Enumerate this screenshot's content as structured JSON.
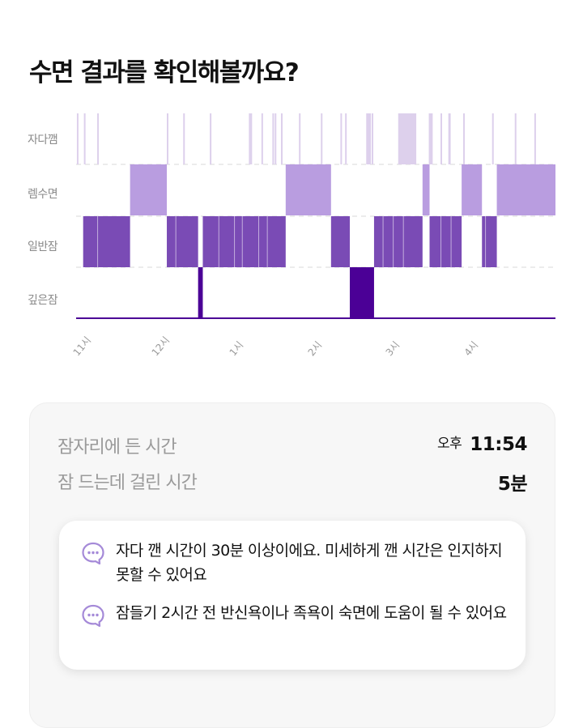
{
  "header": {
    "title": "수면 결과를 확인해볼까요?"
  },
  "chart_data": {
    "type": "heatmap",
    "title": "",
    "stages": [
      "자다깸",
      "렘수면",
      "일반잠",
      "깊은잠"
    ],
    "x_ticks": [
      "11시",
      "12시",
      "1시",
      "2시",
      "3시",
      "4시"
    ],
    "x_tick_hours": [
      0,
      1,
      2,
      3,
      4,
      5
    ],
    "xlim_hours": [
      0,
      6.13
    ],
    "colors": {
      "자다깸": "#ddd0ec",
      "렘수면": "#b99de0",
      "일반잠": "#7a4bb5",
      "깊은잠": "#4b0096"
    },
    "segments": [
      {
        "stage": "일반잠",
        "start": 0.09,
        "end": 0.69
      },
      {
        "stage": "렘수면",
        "start": 0.69,
        "end": 1.16
      },
      {
        "stage": "일반잠",
        "start": 1.16,
        "end": 1.56
      },
      {
        "stage": "깊은잠",
        "start": 1.56,
        "end": 1.62
      },
      {
        "stage": "일반잠",
        "start": 1.62,
        "end": 2.68
      },
      {
        "stage": "렘수면",
        "start": 2.68,
        "end": 3.26
      },
      {
        "stage": "일반잠",
        "start": 3.26,
        "end": 3.5
      },
      {
        "stage": "깊은잠",
        "start": 3.5,
        "end": 3.81
      },
      {
        "stage": "일반잠",
        "start": 3.81,
        "end": 4.43
      },
      {
        "stage": "렘수면",
        "start": 4.43,
        "end": 4.52
      },
      {
        "stage": "일반잠",
        "start": 4.52,
        "end": 4.93
      },
      {
        "stage": "렘수면",
        "start": 4.93,
        "end": 5.19
      },
      {
        "stage": "일반잠",
        "start": 5.19,
        "end": 5.38
      },
      {
        "stage": "렘수면",
        "start": 5.38,
        "end": 6.13
      }
    ],
    "awake_blips": [
      0.02,
      0.11,
      0.28,
      1.17,
      1.38,
      1.72,
      2.22,
      2.24,
      2.38,
      2.52,
      2.55,
      2.63,
      2.86,
      3.14,
      3.39,
      3.45,
      3.72,
      3.79,
      4.13,
      4.17,
      4.67,
      4.96,
      5.33,
      5.62,
      5.87
    ],
    "awake_blocks": [
      {
        "start": 3.72,
        "end": 3.77
      },
      {
        "start": 4.12,
        "end": 4.35
      },
      {
        "start": 4.51,
        "end": 4.56
      },
      {
        "start": 4.76,
        "end": 4.79
      }
    ],
    "grid": "dashed-horizontal"
  },
  "summary": {
    "bedtime_label": "잠자리에 든 시간",
    "bedtime_prefix": "오후",
    "bedtime_value": "11:54",
    "latency_label": "잠 드는데 걸린 시간",
    "latency_value": "5분"
  },
  "tips": [
    {
      "icon": "chat-bubble-icon",
      "text": "자다 깬 시간이 30분 이상이에요. 미세하게 깬 시간은 인지하지 못할 수 있어요"
    },
    {
      "icon": "chat-bubble-icon",
      "text": "잠들기 2시간 전 반신욕이나 족욕이 숙면에 도움이 될 수 있어요"
    }
  ]
}
